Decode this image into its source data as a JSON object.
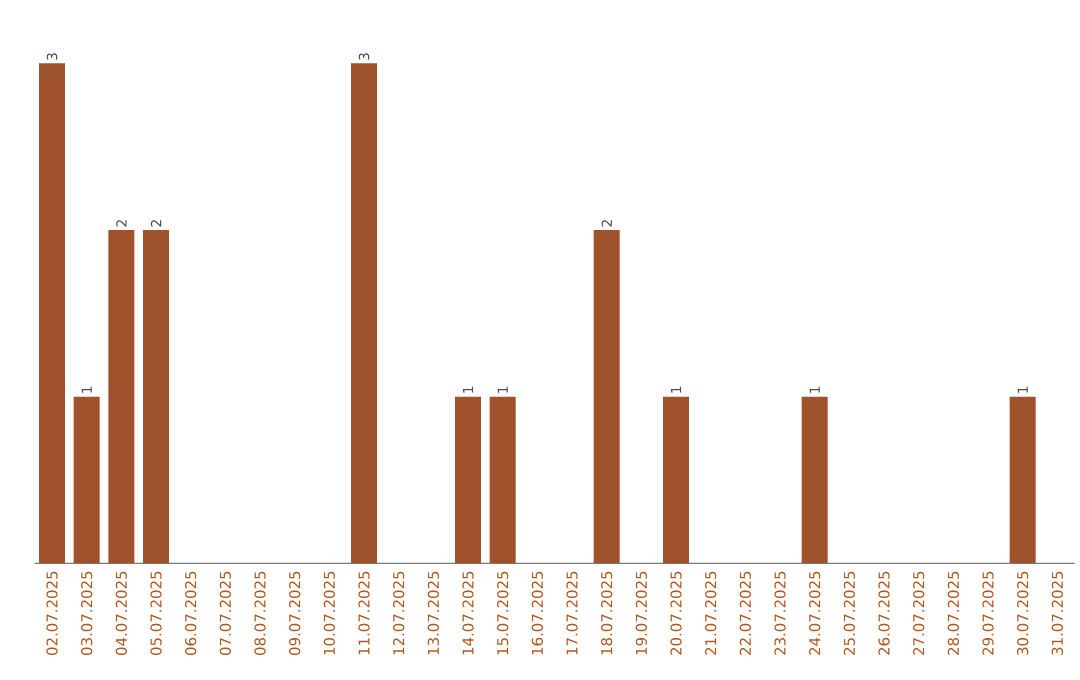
{
  "chart_data": {
    "type": "bar",
    "categories": [
      "02.07.2025",
      "03.07.2025",
      "04.07.2025",
      "05.07.2025",
      "06.07.2025",
      "07.07.2025",
      "08.07.2025",
      "09.07.2025",
      "10.07.2025",
      "11.07.2025",
      "12.07.2025",
      "13.07.2025",
      "14.07.2025",
      "15.07.2025",
      "16.07.2025",
      "17.07.2025",
      "18.07.2025",
      "19.07.2025",
      "20.07.2025",
      "21.07.2025",
      "22.07.2025",
      "23.07.2025",
      "24.07.2025",
      "25.07.2025",
      "26.07.2025",
      "27.07.2025",
      "28.07.2025",
      "29.07.2025",
      "30.07.2025",
      "31.07.2025"
    ],
    "values": [
      3,
      1,
      2,
      2,
      0,
      0,
      0,
      0,
      0,
      3,
      0,
      0,
      1,
      1,
      0,
      0,
      2,
      0,
      1,
      0,
      0,
      0,
      1,
      0,
      0,
      0,
      0,
      0,
      1,
      0
    ],
    "value_labels": [
      "3",
      "1",
      "2",
      "2",
      null,
      null,
      null,
      null,
      null,
      "3",
      null,
      null,
      "1",
      "1",
      null,
      null,
      "2",
      null,
      "1",
      null,
      null,
      null,
      "1",
      null,
      null,
      null,
      null,
      null,
      "1",
      null
    ],
    "color": "#a0522d",
    "ylim": [
      0,
      3
    ],
    "tick_labels": "x"
  }
}
